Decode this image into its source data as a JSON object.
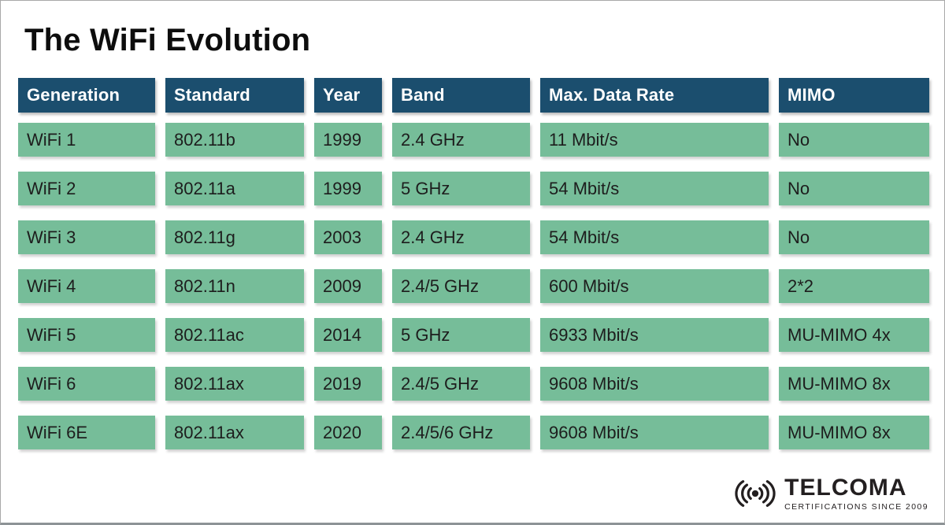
{
  "page": {
    "title": "The WiFi Evolution"
  },
  "colors": {
    "header_bg": "#1b4e6e",
    "cell_bg": "#76bd99",
    "header_text": "#ffffff",
    "cell_text": "#1d1d1d",
    "logo_ink": "#231f20"
  },
  "table": {
    "columns": [
      {
        "key": "generation",
        "label": "Generation"
      },
      {
        "key": "standard",
        "label": "Standard"
      },
      {
        "key": "year",
        "label": "Year"
      },
      {
        "key": "band",
        "label": "Band"
      },
      {
        "key": "max_data_rate",
        "label": "Max. Data Rate"
      },
      {
        "key": "mimo",
        "label": "MIMO"
      }
    ],
    "rows": [
      {
        "generation": "WiFi 1",
        "standard": "802.11b",
        "year": "1999",
        "band": "2.4 GHz",
        "max_data_rate": "11 Mbit/s",
        "mimo": "No"
      },
      {
        "generation": "WiFi 2",
        "standard": "802.11a",
        "year": "1999",
        "band": "5 GHz",
        "max_data_rate": "54 Mbit/s",
        "mimo": "No"
      },
      {
        "generation": "WiFi 3",
        "standard": "802.11g",
        "year": "2003",
        "band": "2.4 GHz",
        "max_data_rate": "54 Mbit/s",
        "mimo": "No"
      },
      {
        "generation": "WiFi 4",
        "standard": "802.11n",
        "year": "2009",
        "band": "2.4/5 GHz",
        "max_data_rate": "600 Mbit/s",
        "mimo": "2*2"
      },
      {
        "generation": "WiFi 5",
        "standard": "802.11ac",
        "year": "2014",
        "band": "5 GHz",
        "max_data_rate": "6933 Mbit/s",
        "mimo": "MU-MIMO 4x"
      },
      {
        "generation": "WiFi 6",
        "standard": "802.11ax",
        "year": "2019",
        "band": "2.4/5 GHz",
        "max_data_rate": "9608 Mbit/s",
        "mimo": "MU-MIMO 8x"
      },
      {
        "generation": "WiFi 6E",
        "standard": "802.11ax",
        "year": "2020",
        "band": "2.4/5/6 GHz",
        "max_data_rate": "9608 Mbit/s",
        "mimo": "MU-MIMO 8x"
      }
    ]
  },
  "chart_data": {
    "type": "table",
    "title": "The WiFi Evolution",
    "columns": [
      "Generation",
      "Standard",
      "Year",
      "Band",
      "Max. Data Rate",
      "MIMO"
    ],
    "rows": [
      [
        "WiFi 1",
        "802.11b",
        "1999",
        "2.4 GHz",
        "11 Mbit/s",
        "No"
      ],
      [
        "WiFi 2",
        "802.11a",
        "1999",
        "5 GHz",
        "54 Mbit/s",
        "No"
      ],
      [
        "WiFi 3",
        "802.11g",
        "2003",
        "2.4 GHz",
        "54 Mbit/s",
        "No"
      ],
      [
        "WiFi 4",
        "802.11n",
        "2009",
        "2.4/5 GHz",
        "600 Mbit/s",
        "2*2"
      ],
      [
        "WiFi 5",
        "802.11ac",
        "2014",
        "5 GHz",
        "6933 Mbit/s",
        "MU-MIMO 4x"
      ],
      [
        "WiFi 6",
        "802.11ax",
        "2019",
        "2.4/5 GHz",
        "9608 Mbit/s",
        "MU-MIMO 8x"
      ],
      [
        "WiFi 6E",
        "802.11ax",
        "2020",
        "2.4/5/6 GHz",
        "9608 Mbit/s",
        "MU-MIMO 8x"
      ]
    ]
  },
  "logo": {
    "icon": "wifi-signal-icon",
    "brand": "TELCOMA",
    "tagline": "CERTIFICATIONS SINCE 2009"
  }
}
